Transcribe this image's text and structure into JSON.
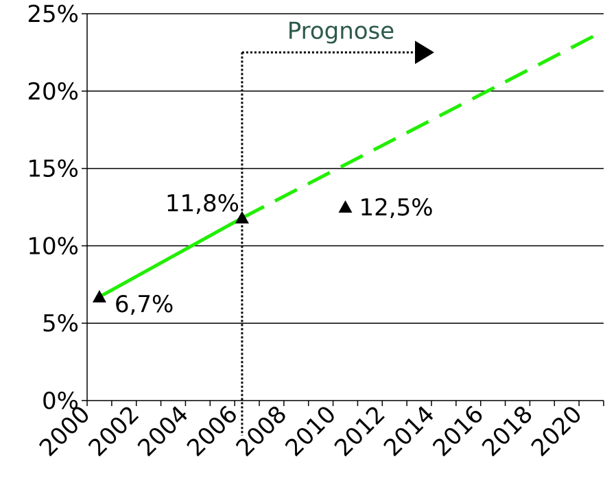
{
  "chart_data": {
    "type": "line",
    "title": "",
    "xlabel": "",
    "ylabel": "",
    "xlim": [
      2000,
      2021
    ],
    "ylim": [
      0,
      25
    ],
    "grid": "horizontal",
    "x_ticks": [
      "2000",
      "2002",
      "2004",
      "2006",
      "2008",
      "2010",
      "2012",
      "2014",
      "2016",
      "2018",
      "2020"
    ],
    "y_ticks": [
      "0%",
      "5%",
      "10%",
      "15%",
      "20%",
      "25%"
    ],
    "series": [
      {
        "style": "solid",
        "color": "#22ee00",
        "points": [
          [
            2000.5,
            6.7
          ],
          [
            2006.3,
            11.8
          ]
        ]
      },
      {
        "style": "dashed",
        "color": "#22ee00",
        "points": [
          [
            2006.3,
            11.8
          ],
          [
            2020.9,
            23.8
          ]
        ]
      }
    ],
    "markers": [
      {
        "x": 2000.5,
        "y": 6.7,
        "label": "6,7%",
        "label_side": "right-below"
      },
      {
        "x": 2006.3,
        "y": 11.8,
        "label": "11,8%",
        "label_side": "left-above"
      },
      {
        "x": 2010.5,
        "y": 12.5,
        "label": "12,5%",
        "label_side": "right"
      }
    ],
    "annotation": {
      "text": "Prognose",
      "from_x": 2006.3,
      "to_x": 2014.0,
      "y": 22.5,
      "style": "dotted-arrow"
    }
  }
}
